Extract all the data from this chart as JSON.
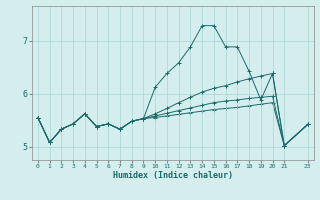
{
  "xlabel": "Humidex (Indice chaleur)",
  "bg_color": "#d4eeed",
  "grid_color": "#aad4d4",
  "line_color": "#1a6b6b",
  "xlim": [
    -0.5,
    23.5
  ],
  "ylim": [
    4.75,
    7.65
  ],
  "xticks": [
    0,
    1,
    2,
    3,
    4,
    5,
    6,
    7,
    8,
    9,
    10,
    11,
    12,
    13,
    14,
    15,
    16,
    17,
    18,
    19,
    20,
    21,
    23
  ],
  "yticks": [
    5,
    6,
    7
  ],
  "line1_x": [
    0,
    1,
    2,
    3,
    4,
    5,
    6,
    7,
    8,
    9,
    10,
    11,
    12,
    13,
    14,
    15,
    16,
    17,
    18,
    19,
    20,
    21,
    23
  ],
  "line1_y": [
    5.55,
    5.08,
    5.33,
    5.43,
    5.62,
    5.38,
    5.43,
    5.33,
    5.48,
    5.53,
    6.12,
    6.38,
    6.58,
    6.88,
    7.28,
    7.28,
    6.88,
    6.88,
    6.42,
    5.88,
    6.38,
    5.02,
    5.42
  ],
  "line2_x": [
    0,
    1,
    2,
    3,
    4,
    5,
    6,
    7,
    8,
    9,
    10,
    11,
    12,
    13,
    14,
    15,
    16,
    17,
    18,
    19,
    20,
    21,
    23
  ],
  "line2_y": [
    5.55,
    5.08,
    5.33,
    5.43,
    5.62,
    5.38,
    5.43,
    5.33,
    5.48,
    5.53,
    5.62,
    5.72,
    5.83,
    5.93,
    6.03,
    6.1,
    6.15,
    6.22,
    6.28,
    6.33,
    6.38,
    5.02,
    5.42
  ],
  "line3_x": [
    0,
    1,
    2,
    3,
    4,
    5,
    6,
    7,
    8,
    9,
    10,
    11,
    12,
    13,
    14,
    15,
    16,
    17,
    18,
    19,
    20,
    21,
    23
  ],
  "line3_y": [
    5.55,
    5.08,
    5.33,
    5.43,
    5.62,
    5.38,
    5.43,
    5.33,
    5.48,
    5.53,
    5.58,
    5.63,
    5.68,
    5.73,
    5.78,
    5.83,
    5.86,
    5.88,
    5.91,
    5.93,
    5.95,
    5.02,
    5.42
  ],
  "line4_x": [
    0,
    1,
    2,
    3,
    4,
    5,
    6,
    7,
    8,
    9,
    10,
    11,
    12,
    13,
    14,
    15,
    16,
    17,
    18,
    19,
    20,
    21,
    23
  ],
  "line4_y": [
    5.55,
    5.08,
    5.33,
    5.43,
    5.62,
    5.38,
    5.43,
    5.33,
    5.48,
    5.53,
    5.55,
    5.58,
    5.61,
    5.64,
    5.67,
    5.7,
    5.72,
    5.74,
    5.77,
    5.8,
    5.83,
    5.02,
    5.42
  ]
}
